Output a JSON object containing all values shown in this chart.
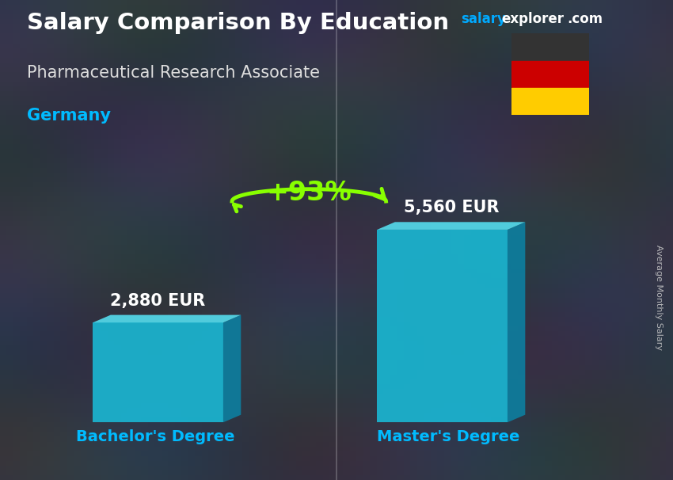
{
  "title": "Salary Comparison By Education",
  "subtitle": "Pharmaceutical Research Associate",
  "country": "Germany",
  "site_salary": "salary",
  "site_explorer": "explorer",
  "site_com": ".com",
  "categories": [
    "Bachelor's Degree",
    "Master's Degree"
  ],
  "values": [
    2880,
    5560
  ],
  "value_labels": [
    "2,880 EUR",
    "5,560 EUR"
  ],
  "bar_face_color": "#1ab8d4",
  "bar_right_color": "#0d7fa0",
  "bar_top_color": "#55ddee",
  "pct_change": "+93%",
  "pct_color": "#88ff00",
  "arrow_color": "#88ff00",
  "ylabel": "Average Monthly Salary",
  "bg_top_color": "#4a5060",
  "bg_bottom_color": "#2a2e38",
  "title_color": "#ffffff",
  "subtitle_color": "#dddddd",
  "country_color": "#00bbff",
  "value_label_color": "#ffffff",
  "xlabel_color": "#00bbff",
  "site_salary_color": "#00aaff",
  "site_rest_color": "#ffffff",
  "flag_black": "#333333",
  "flag_red": "#cc0000",
  "flag_gold": "#ffcc00",
  "ylabel_color": "#cccccc",
  "divider_color": "#aaaaaa",
  "bar_alpha": 0.9
}
